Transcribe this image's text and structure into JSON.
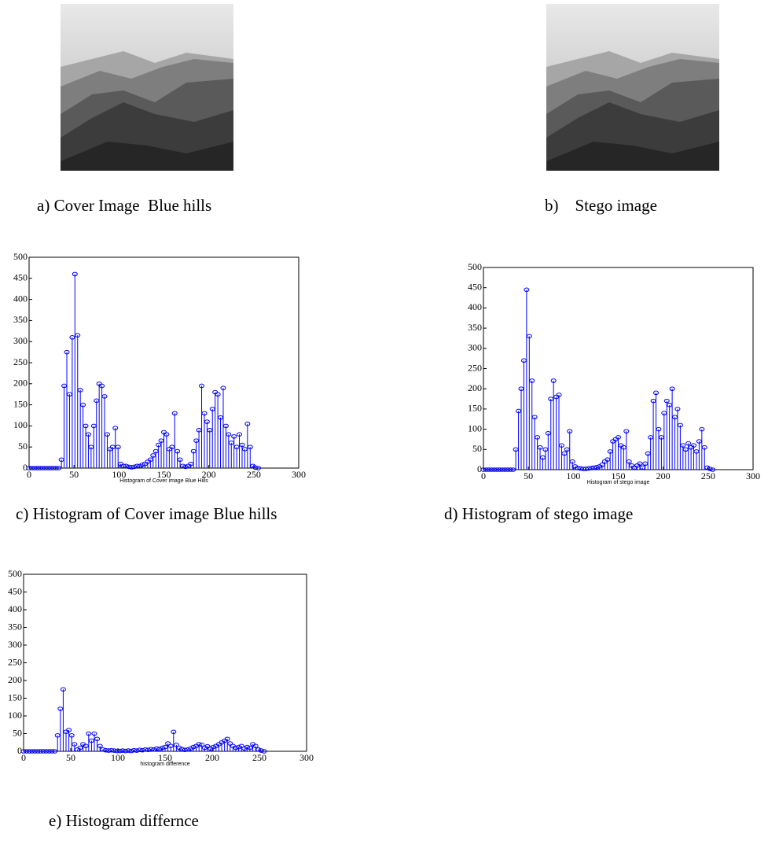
{
  "captions": [
    "a) Cover Image  Blue hills",
    "b)    Stego image",
    "c) Histogram of Cover image Blue hills",
    "d) Histogram of stego image",
    "e) Histogram differnce"
  ],
  "chart_data": [
    {
      "type": "stem",
      "xlabel": "Histogram of Cover image Blue Hills",
      "color": "#0000ff",
      "xlim": [
        0,
        300
      ],
      "xticks": [
        0,
        50,
        100,
        150,
        200,
        250,
        300
      ],
      "ylim": [
        0,
        500
      ],
      "yticks": [
        0,
        50,
        100,
        150,
        200,
        250,
        300,
        350,
        400,
        450,
        500
      ],
      "x": [
        0,
        3,
        6,
        9,
        12,
        15,
        18,
        21,
        24,
        27,
        30,
        33,
        36,
        39,
        42,
        45,
        48,
        51,
        54,
        57,
        60,
        63,
        66,
        69,
        72,
        75,
        78,
        81,
        84,
        87,
        90,
        93,
        96,
        99,
        102,
        105,
        108,
        111,
        114,
        117,
        120,
        123,
        126,
        129,
        132,
        135,
        138,
        141,
        144,
        147,
        150,
        153,
        156,
        159,
        162,
        165,
        168,
        171,
        174,
        177,
        180,
        183,
        186,
        189,
        192,
        195,
        198,
        201,
        204,
        207,
        210,
        213,
        216,
        219,
        222,
        225,
        228,
        231,
        234,
        237,
        240,
        243,
        246,
        249,
        252,
        255
      ],
      "values": [
        0,
        0,
        0,
        0,
        0,
        0,
        0,
        0,
        0,
        0,
        0,
        0,
        20,
        195,
        275,
        175,
        310,
        460,
        315,
        185,
        150,
        100,
        80,
        50,
        100,
        160,
        200,
        195,
        170,
        80,
        45,
        50,
        95,
        50,
        10,
        5,
        5,
        3,
        2,
        3,
        5,
        5,
        8,
        10,
        15,
        20,
        30,
        40,
        55,
        65,
        85,
        80,
        45,
        50,
        130,
        40,
        20,
        5,
        3,
        5,
        10,
        40,
        65,
        90,
        195,
        130,
        110,
        90,
        140,
        180,
        175,
        120,
        190,
        100,
        80,
        60,
        75,
        50,
        80,
        55,
        45,
        105,
        50,
        5,
        1,
        0
      ]
    },
    {
      "type": "stem",
      "xlabel": "Histogram of stego image",
      "color": "#0000ff",
      "xlim": [
        0,
        300
      ],
      "xticks": [
        0,
        50,
        100,
        150,
        200,
        250,
        300
      ],
      "ylim": [
        0,
        500
      ],
      "yticks": [
        0,
        50,
        100,
        150,
        200,
        250,
        300,
        350,
        400,
        450,
        500
      ],
      "x": [
        0,
        3,
        6,
        9,
        12,
        15,
        18,
        21,
        24,
        27,
        30,
        33,
        36,
        39,
        42,
        45,
        48,
        51,
        54,
        57,
        60,
        63,
        66,
        69,
        72,
        75,
        78,
        81,
        84,
        87,
        90,
        93,
        96,
        99,
        102,
        105,
        108,
        111,
        114,
        117,
        120,
        123,
        126,
        129,
        132,
        135,
        138,
        141,
        144,
        147,
        150,
        153,
        156,
        159,
        162,
        165,
        168,
        171,
        174,
        177,
        180,
        183,
        186,
        189,
        192,
        195,
        198,
        201,
        204,
        207,
        210,
        213,
        216,
        219,
        222,
        225,
        228,
        231,
        234,
        237,
        240,
        243,
        246,
        249,
        252,
        255
      ],
      "values": [
        0,
        0,
        0,
        0,
        0,
        0,
        0,
        0,
        0,
        0,
        0,
        0,
        50,
        145,
        200,
        270,
        445,
        330,
        220,
        130,
        80,
        55,
        30,
        50,
        90,
        175,
        220,
        180,
        185,
        60,
        40,
        50,
        95,
        20,
        8,
        4,
        3,
        2,
        2,
        3,
        4,
        5,
        6,
        8,
        12,
        20,
        25,
        45,
        70,
        75,
        80,
        60,
        55,
        95,
        20,
        10,
        5,
        10,
        15,
        5,
        15,
        40,
        80,
        170,
        190,
        100,
        80,
        140,
        170,
        160,
        200,
        130,
        150,
        110,
        60,
        50,
        65,
        55,
        60,
        45,
        70,
        100,
        55,
        5,
        2,
        0
      ]
    },
    {
      "type": "stem",
      "xlabel": "histogram difference",
      "color": "#0000ff",
      "xlim": [
        0,
        300
      ],
      "xticks": [
        0,
        50,
        100,
        150,
        200,
        250,
        300
      ],
      "ylim": [
        0,
        500
      ],
      "yticks": [
        0,
        50,
        100,
        150,
        200,
        250,
        300,
        350,
        400,
        450,
        500
      ],
      "x": [
        0,
        3,
        6,
        9,
        12,
        15,
        18,
        21,
        24,
        27,
        30,
        33,
        36,
        39,
        42,
        45,
        48,
        51,
        54,
        57,
        60,
        63,
        66,
        69,
        72,
        75,
        78,
        81,
        84,
        87,
        90,
        93,
        96,
        99,
        102,
        105,
        108,
        111,
        114,
        117,
        120,
        123,
        126,
        129,
        132,
        135,
        138,
        141,
        144,
        147,
        150,
        153,
        156,
        159,
        162,
        165,
        168,
        171,
        174,
        177,
        180,
        183,
        186,
        189,
        192,
        195,
        198,
        201,
        204,
        207,
        210,
        213,
        216,
        219,
        222,
        225,
        228,
        231,
        234,
        237,
        240,
        243,
        246,
        249,
        252,
        255
      ],
      "values": [
        0,
        0,
        0,
        0,
        0,
        0,
        0,
        0,
        0,
        0,
        0,
        0,
        45,
        120,
        175,
        55,
        60,
        45,
        20,
        5,
        10,
        20,
        15,
        50,
        30,
        50,
        35,
        15,
        5,
        3,
        2,
        3,
        2,
        1,
        1,
        2,
        1,
        2,
        1,
        3,
        2,
        4,
        3,
        5,
        4,
        6,
        5,
        8,
        6,
        10,
        12,
        22,
        15,
        55,
        18,
        10,
        6,
        4,
        5,
        8,
        12,
        15,
        20,
        18,
        10,
        14,
        8,
        12,
        15,
        20,
        25,
        30,
        35,
        22,
        15,
        10,
        12,
        15,
        8,
        12,
        10,
        20,
        15,
        5,
        2,
        0
      ]
    }
  ]
}
